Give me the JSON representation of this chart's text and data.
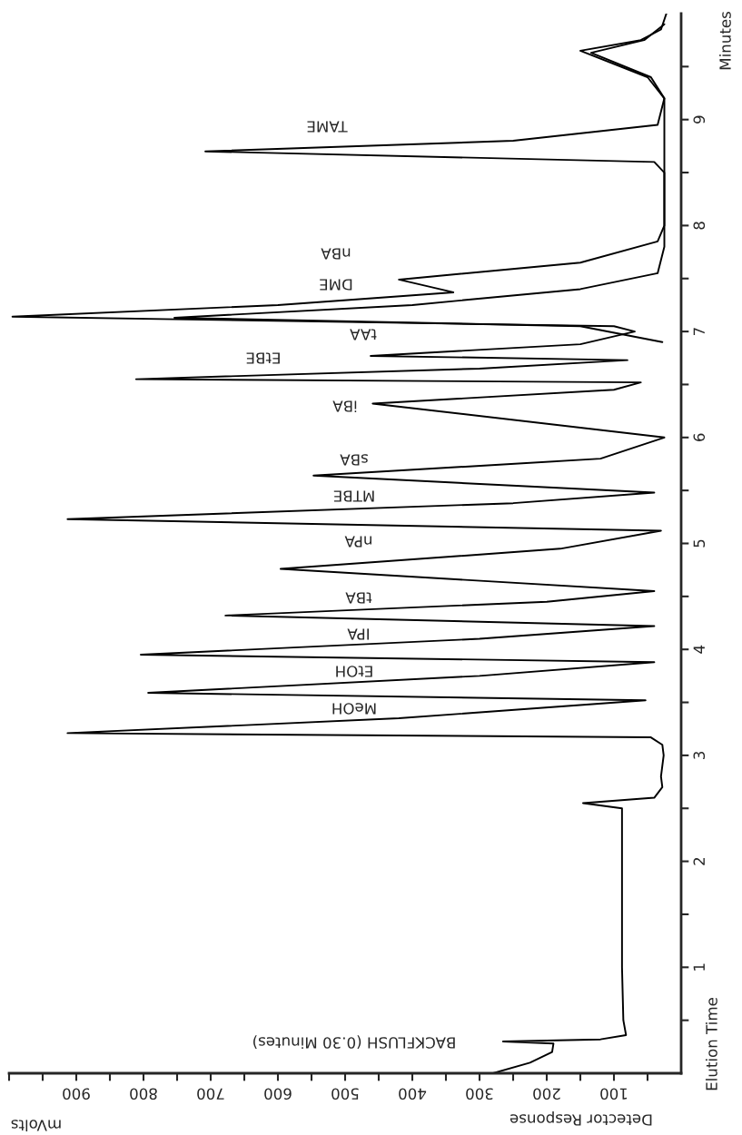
{
  "chart_data": {
    "type": "line",
    "xlabel": "Detector Response",
    "ylabel": "Elution Time",
    "xlim": [
      1000,
      0
    ],
    "ylim": [
      0,
      10
    ],
    "yticks": [
      {
        "value": 0.5,
        "label": null
      },
      1,
      {
        "value": 1.5,
        "label": null
      },
      2,
      {
        "value": 2.5,
        "label": null
      },
      3,
      {
        "value": 3.5,
        "label": null
      },
      4,
      {
        "value": 4.5,
        "label": null
      },
      5,
      {
        "value": 5.5,
        "label": null
      },
      6,
      {
        "value": 6.5,
        "label": null
      },
      7,
      {
        "value": 7.5,
        "label": null
      },
      8,
      {
        "value": 8.5,
        "label": null
      },
      9,
      {
        "value": 9.5,
        "label": null
      }
    ],
    "xticks": [
      {
        "value": 50,
        "label": null
      },
      100,
      {
        "value": 150,
        "label": null
      },
      200,
      {
        "value": 250,
        "label": null
      },
      300,
      {
        "value": 350,
        "label": null
      },
      400,
      {
        "value": 450,
        "label": null
      },
      500,
      {
        "value": 550,
        "label": null
      },
      600,
      {
        "value": 650,
        "label": null
      },
      700,
      {
        "value": 750,
        "label": null
      },
      800,
      {
        "value": 850,
        "label": null
      },
      900,
      {
        "value": 950,
        "label": null
      },
      {
        "value": 1000,
        "label": null
      }
    ],
    "series": [
      {
        "color": "#000000",
        "values": [
          0.0,
          0.1,
          0.2,
          0.28,
          0.3,
          0.32,
          0.36,
          0.5,
          1.0,
          2.0,
          2.5,
          2.55,
          2.6,
          2.7,
          2.8,
          3.0,
          3.1,
          3.17,
          3.21,
          3.35,
          3.52,
          3.59,
          3.75,
          3.88,
          3.95,
          4.1,
          4.22,
          4.32,
          4.45,
          4.55,
          4.76,
          4.95,
          5.12,
          5.23,
          5.38,
          5.48,
          5.64,
          5.8,
          6.0,
          6.32,
          6.45,
          6.52,
          6.55,
          6.65,
          6.73,
          6.77,
          6.88,
          7.0,
          7.05,
          7.14,
          7.25,
          7.37,
          7.49,
          7.65,
          7.85,
          8.0,
          8.5,
          8.6,
          8.7,
          8.8,
          8.95,
          9.2,
          9.4,
          9.65,
          9.75,
          9.85,
          10.0
        ],
        "x": [
          280,
          225,
          192,
          190,
          265,
          120,
          82,
          86,
          88,
          88,
          88,
          146,
          40,
          28,
          30,
          26,
          28,
          45,
          913,
          420,
          53,
          793,
          300,
          40,
          804,
          300,
          40,
          678,
          200,
          40,
          596,
          180,
          30,
          913,
          250,
          40,
          547,
          120,
          25,
          459,
          100,
          60,
          811,
          300,
          80,
          462,
          150,
          69,
          100,
          995,
          600,
          339,
          420,
          150,
          35,
          25,
          25,
          40,
          708,
          250,
          35,
          25,
          50,
          150,
          60,
          30,
          22
        ]
      },
      {
        "color": "#000000",
        "values": [
          6.9,
          7.05,
          7.13,
          7.25,
          7.4,
          7.55,
          7.8,
          9.2,
          9.4,
          9.63,
          9.75,
          9.9
        ],
        "x": [
          28,
          150,
          754,
          400,
          150,
          35,
          25,
          25,
          45,
          134,
          55,
          25
        ]
      }
    ],
    "annotations": [
      "Minutes",
      "mVolts",
      "BACKFLUSH (0.30 Minutes)",
      "MeOH",
      "EtOH",
      "IPA",
      "tBA",
      "nPA",
      "MTBE",
      "sBA",
      "iBA",
      "EtBE",
      "tAA",
      "DME",
      "nBA",
      "TAME"
    ]
  }
}
